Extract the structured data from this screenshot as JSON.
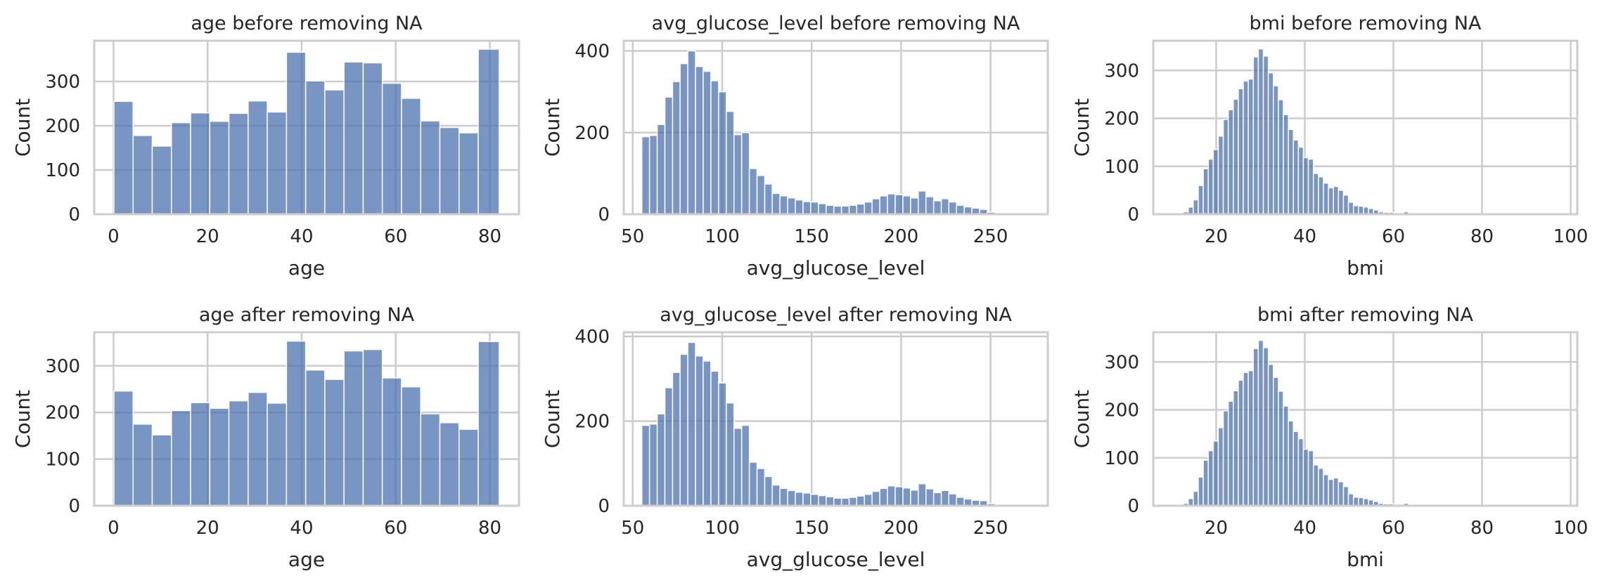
{
  "chart_data": [
    {
      "type": "bar",
      "title": "age before removing NA",
      "xlabel": "age",
      "ylabel": "Count",
      "xlim": [
        -4.1,
        86.2
      ],
      "ylim": [
        0,
        392
      ],
      "xticks": [
        0,
        20,
        40,
        60,
        80
      ],
      "yticks": [
        0,
        100,
        200,
        300
      ],
      "bin_edges": [
        0.08,
        4.16,
        8.23,
        12.31,
        16.39,
        20.46,
        24.54,
        28.62,
        32.69,
        36.77,
        40.85,
        44.92,
        49.0,
        53.08,
        57.15,
        61.23,
        65.31,
        69.38,
        73.46,
        77.54,
        82.0
      ],
      "values": [
        255,
        178,
        154,
        207,
        229,
        210,
        228,
        256,
        231,
        366,
        301,
        281,
        344,
        342,
        296,
        262,
        211,
        196,
        184,
        373
      ]
    },
    {
      "type": "bar",
      "title": "avg_glucose_level before removing NA",
      "xlabel": "avg_glucose_level",
      "ylabel": "Count",
      "xlim": [
        45,
        282
      ],
      "ylim": [
        0,
        425
      ],
      "xticks": [
        50,
        100,
        150,
        200,
        250
      ],
      "yticks": [
        0,
        200,
        400
      ],
      "bin_edges": [
        55.1,
        59.4,
        63.7,
        68.0,
        72.3,
        76.5,
        80.8,
        85.1,
        89.4,
        93.7,
        98.0,
        102.3,
        106.6,
        110.9,
        115.2,
        119.5,
        123.8,
        128.0,
        132.3,
        136.6,
        140.9,
        145.2,
        149.5,
        153.8,
        158.1,
        162.4,
        166.7,
        171.0,
        175.2,
        179.5,
        183.8,
        188.1,
        192.4,
        196.7,
        201.0,
        205.3,
        209.6,
        213.9,
        218.2,
        222.5,
        226.7,
        231.0,
        235.3,
        239.6,
        243.9,
        248.2,
        252.5,
        256.8,
        261.1,
        265.4,
        269.7,
        271.7
      ],
      "values": [
        190,
        193,
        220,
        287,
        325,
        369,
        400,
        362,
        350,
        327,
        300,
        252,
        195,
        200,
        112,
        95,
        74,
        51,
        45,
        40,
        35,
        31,
        30,
        26,
        22,
        20,
        20,
        22,
        25,
        30,
        38,
        45,
        50,
        48,
        45,
        40,
        57,
        43,
        33,
        38,
        30,
        22,
        18,
        15,
        12,
        5,
        3,
        2,
        1,
        1,
        1
      ],
      "values_after": [
        190,
        193,
        217,
        279,
        315,
        358,
        386,
        354,
        342,
        318,
        290,
        243,
        183,
        190,
        103,
        88,
        69,
        49,
        41,
        36,
        32,
        30,
        27,
        24,
        21,
        18,
        18,
        20,
        23,
        27,
        34,
        41,
        47,
        45,
        42,
        37,
        52,
        40,
        31,
        36,
        28,
        20,
        16,
        13,
        12,
        5,
        3,
        2,
        1,
        1,
        1
      ]
    },
    {
      "type": "bar",
      "title": "bmi before removing NA",
      "xlabel": "bmi",
      "ylabel": "Count",
      "xlim": [
        5.8,
        101.5
      ],
      "ylim": [
        0,
        362
      ],
      "xticks": [
        20,
        40,
        60,
        80,
        100
      ],
      "yticks": [
        0,
        100,
        200,
        300
      ],
      "bin_edges": [
        10.3,
        11.43,
        12.56,
        13.69,
        14.82,
        15.95,
        17.08,
        18.21,
        19.34,
        20.47,
        21.6,
        22.73,
        23.86,
        24.99,
        26.12,
        27.25,
        28.38,
        29.51,
        30.64,
        31.77,
        32.9,
        34.03,
        35.16,
        36.29,
        37.42,
        38.55,
        39.68,
        40.81,
        41.94,
        43.07,
        44.2,
        45.33,
        46.46,
        47.59,
        48.72,
        49.85,
        50.98,
        52.11,
        53.24,
        54.37,
        55.5,
        56.63,
        57.76,
        58.89,
        60.02,
        61.15,
        62.28,
        63.41,
        64.54,
        65.67,
        66.8,
        67.93,
        69.06,
        70.19,
        71.32,
        72.45,
        73.58,
        74.71,
        75.84,
        76.97,
        78.1,
        79.23,
        80.36,
        81.49,
        82.62,
        83.75,
        84.88,
        86.01,
        87.14,
        88.27,
        89.4,
        90.53,
        91.66,
        92.79,
        93.92,
        95.05,
        96.18,
        97.31
      ],
      "values": [
        1,
        2,
        5,
        15,
        30,
        60,
        95,
        115,
        135,
        163,
        198,
        218,
        240,
        262,
        278,
        282,
        328,
        345,
        330,
        295,
        268,
        239,
        208,
        177,
        155,
        140,
        118,
        115,
        85,
        78,
        65,
        55,
        58,
        50,
        40,
        25,
        18,
        17,
        15,
        12,
        9,
        5,
        4,
        4,
        3,
        2,
        5,
        2,
        1,
        1,
        1,
        1,
        1,
        1,
        0,
        0,
        0,
        0,
        0,
        0,
        0,
        0,
        0,
        0,
        0,
        0,
        0,
        0,
        0,
        1,
        0,
        0,
        0,
        0,
        0,
        0,
        1
      ],
      "values_after": [
        1,
        2,
        5,
        15,
        30,
        60,
        95,
        115,
        135,
        163,
        198,
        218,
        240,
        262,
        278,
        282,
        328,
        345,
        330,
        295,
        268,
        239,
        208,
        177,
        155,
        140,
        118,
        115,
        85,
        78,
        65,
        55,
        58,
        50,
        40,
        25,
        18,
        17,
        15,
        12,
        9,
        5,
        4,
        4,
        3,
        2,
        5,
        2,
        1,
        1,
        1,
        1,
        1,
        1,
        0,
        0,
        0,
        0,
        0,
        0,
        0,
        0,
        0,
        0,
        0,
        0,
        0,
        0,
        0,
        1,
        0,
        0,
        0,
        0,
        0,
        0,
        1
      ]
    },
    {
      "type": "bar",
      "title": "age after removing NA",
      "xlabel": "age",
      "ylabel": "Count",
      "xlim": [
        -4.1,
        86.2
      ],
      "ylim": [
        0,
        372
      ],
      "xticks": [
        0,
        20,
        40,
        60,
        80
      ],
      "yticks": [
        0,
        100,
        200,
        300
      ],
      "bin_edges": [
        0.08,
        4.16,
        8.23,
        12.31,
        16.39,
        20.46,
        24.54,
        28.62,
        32.69,
        36.77,
        40.85,
        44.92,
        49.0,
        53.08,
        57.15,
        61.23,
        65.31,
        69.38,
        73.46,
        77.54,
        82.0
      ],
      "values": [
        246,
        175,
        152,
        204,
        221,
        209,
        225,
        243,
        220,
        353,
        291,
        271,
        332,
        335,
        274,
        255,
        197,
        178,
        164,
        352
      ]
    },
    {
      "type": "bar",
      "title": "avg_glucose_level after removing NA",
      "xlabel": "avg_glucose_level",
      "ylabel": "Count",
      "xlim": [
        45,
        282
      ],
      "ylim": [
        0,
        410
      ],
      "xticks": [
        50,
        100,
        150,
        200,
        250
      ],
      "yticks": [
        0,
        200,
        400
      ],
      "bin_edges": [
        55.1,
        59.4,
        63.7,
        68.0,
        72.3,
        76.5,
        80.8,
        85.1,
        89.4,
        93.7,
        98.0,
        102.3,
        106.6,
        110.9,
        115.2,
        119.5,
        123.8,
        128.0,
        132.3,
        136.6,
        140.9,
        145.2,
        149.5,
        153.8,
        158.1,
        162.4,
        166.7,
        171.0,
        175.2,
        179.5,
        183.8,
        188.1,
        192.4,
        196.7,
        201.0,
        205.3,
        209.6,
        213.9,
        218.2,
        222.5,
        226.7,
        231.0,
        235.3,
        239.6,
        243.9,
        248.2,
        252.5,
        256.8,
        261.1,
        265.4,
        269.7,
        271.7
      ],
      "values": [
        190,
        193,
        217,
        279,
        315,
        358,
        386,
        354,
        342,
        318,
        290,
        243,
        183,
        190,
        103,
        88,
        69,
        49,
        41,
        36,
        32,
        30,
        27,
        24,
        21,
        18,
        18,
        20,
        23,
        27,
        34,
        41,
        47,
        45,
        42,
        37,
        52,
        40,
        31,
        36,
        28,
        20,
        16,
        13,
        12,
        5,
        3,
        2,
        1,
        1,
        1
      ]
    },
    {
      "type": "bar",
      "title": "bmi after removing NA",
      "xlabel": "bmi",
      "ylabel": "Count",
      "xlim": [
        5.8,
        101.5
      ],
      "ylim": [
        0,
        362
      ],
      "xticks": [
        20,
        40,
        60,
        80,
        100
      ],
      "yticks": [
        0,
        100,
        200,
        300
      ],
      "bin_edges": [
        10.3,
        11.43,
        12.56,
        13.69,
        14.82,
        15.95,
        17.08,
        18.21,
        19.34,
        20.47,
        21.6,
        22.73,
        23.86,
        24.99,
        26.12,
        27.25,
        28.38,
        29.51,
        30.64,
        31.77,
        32.9,
        34.03,
        35.16,
        36.29,
        37.42,
        38.55,
        39.68,
        40.81,
        41.94,
        43.07,
        44.2,
        45.33,
        46.46,
        47.59,
        48.72,
        49.85,
        50.98,
        52.11,
        53.24,
        54.37,
        55.5,
        56.63,
        57.76,
        58.89,
        60.02,
        61.15,
        62.28,
        63.41,
        64.54,
        65.67,
        66.8,
        67.93,
        69.06,
        70.19,
        71.32,
        72.45,
        73.58,
        74.71,
        75.84,
        76.97,
        78.1,
        79.23,
        80.36,
        81.49,
        82.62,
        83.75,
        84.88,
        86.01,
        87.14,
        88.27,
        89.4,
        90.53,
        91.66,
        92.79,
        93.92,
        95.05,
        96.18,
        97.31
      ],
      "values": [
        1,
        2,
        5,
        15,
        30,
        60,
        95,
        115,
        135,
        163,
        198,
        218,
        240,
        262,
        278,
        282,
        328,
        345,
        330,
        295,
        268,
        239,
        208,
        177,
        155,
        140,
        118,
        115,
        85,
        78,
        65,
        55,
        58,
        50,
        40,
        25,
        18,
        17,
        15,
        12,
        9,
        5,
        4,
        4,
        3,
        2,
        5,
        2,
        1,
        1,
        1,
        1,
        1,
        1,
        0,
        0,
        0,
        0,
        0,
        0,
        0,
        0,
        0,
        0,
        0,
        0,
        0,
        0,
        0,
        1,
        0,
        0,
        0,
        0,
        0,
        0,
        1
      ]
    }
  ],
  "style": {
    "bar_color": "#4c72b0",
    "grid_color": "#cccccc",
    "grid": true
  }
}
